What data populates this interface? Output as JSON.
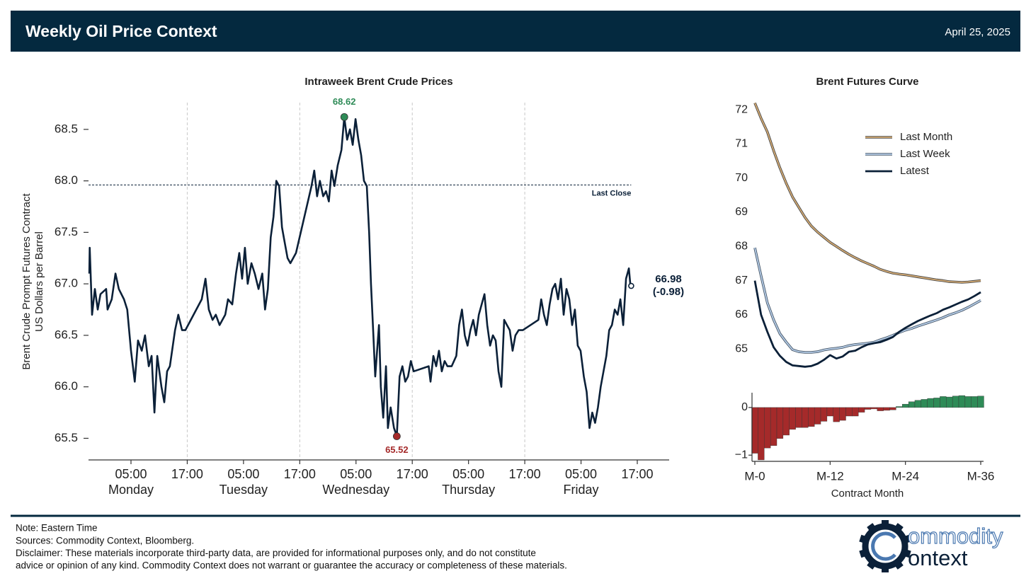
{
  "header": {
    "title": "Weekly Oil Price Context",
    "date": "April 25, 2025"
  },
  "chart_data": [
    {
      "type": "line",
      "title": "Intraweek Brent Crude Prices",
      "ylabel": [
        "Brent Crude Prompt Futures Contract",
        "US Dollars per Barrel"
      ],
      "color": "#0b2038",
      "x": [
        -3.9,
        -3.8,
        -3.3,
        -2.7,
        -2.1,
        -1.5,
        -0.3,
        0.0,
        0.9,
        1.7,
        2.4,
        3.5,
        4.2,
        5.0,
        5.8,
        6.5,
        7.3,
        8.0,
        8.8,
        9.4,
        10.0,
        10.6,
        11.5,
        12.1,
        12.7,
        13.3,
        14.4,
        15.1,
        15.9,
        16.6,
        20.1,
        20.9,
        21.6,
        22.4,
        23.1,
        23.9,
        25.1,
        25.7,
        26.6,
        27.4,
        28.1,
        28.7,
        29.3,
        29.9,
        30.7,
        31.4,
        32.2,
        33.0,
        33.6,
        34.2,
        34.8,
        35.4,
        36.0,
        36.6,
        37.2,
        37.8,
        38.4,
        39.0,
        40.2,
        43.5,
        44.1,
        44.7,
        45.3,
        46.0,
        46.6,
        47.2,
        47.8,
        48.4,
        49.1,
        49.9,
        50.5,
        51.1,
        51.7,
        52.3,
        52.9,
        53.5,
        54.1,
        54.7,
        55.3,
        55.8,
        56.2,
        56.7,
        57.1,
        57.9,
        58.3,
        58.8,
        59.4,
        59.8,
        60.4,
        61.1,
        61.7,
        62.3,
        62.9,
        63.5,
        64.1,
        64.7,
        65.3,
        68.5,
        68.9,
        69.5,
        70.1,
        70.7,
        71.3,
        71.9,
        72.5,
        73.4,
        74.4,
        75.0,
        75.6,
        76.2,
        76.8,
        77.4,
        78.0,
        78.6,
        79.2,
        79.8,
        80.4,
        81.0,
        81.6,
        82.2,
        82.8,
        83.4,
        84.0,
        84.6,
        85.2,
        85.8,
        86.4,
        87.0,
        87.7,
        88.6,
        91.9,
        92.5,
        93.1,
        93.7,
        94.3,
        94.9,
        95.5,
        96.1,
        96.7,
        97.3,
        97.9,
        98.5,
        99.1,
        99.7,
        100.3,
        100.9,
        101.6,
        102.2,
        102.8,
        103.4,
        104.0,
        104.6,
        105.2,
        105.8,
        106.4,
        107.0,
        107.6,
        108.2,
        108.8,
        109.4,
        110.0,
        110.6,
        111.2,
        111.5,
        111.7
      ],
      "values": [
        67.1,
        67.35,
        66.7,
        66.95,
        66.75,
        66.9,
        66.95,
        66.75,
        66.85,
        67.1,
        66.95,
        66.85,
        66.75,
        66.35,
        66.05,
        66.45,
        66.35,
        66.5,
        66.2,
        66.3,
        65.75,
        66.3,
        66.0,
        65.85,
        66.15,
        66.2,
        66.55,
        66.7,
        66.55,
        66.55,
        66.85,
        67.05,
        66.75,
        66.65,
        66.7,
        66.6,
        66.7,
        66.85,
        66.8,
        67.1,
        67.3,
        67.05,
        67.35,
        67.0,
        67.2,
        67.1,
        66.95,
        67.1,
        66.75,
        66.95,
        67.45,
        67.65,
        68.0,
        67.95,
        67.55,
        67.4,
        67.25,
        67.2,
        67.3,
        67.95,
        68.1,
        67.85,
        68.0,
        67.85,
        67.9,
        67.8,
        68.1,
        67.95,
        68.15,
        68.3,
        68.62,
        68.4,
        68.5,
        68.35,
        68.6,
        68.4,
        68.25,
        68.0,
        67.95,
        67.5,
        67.0,
        66.5,
        66.1,
        66.6,
        66.0,
        65.7,
        66.2,
        65.6,
        65.8,
        65.6,
        65.52,
        66.1,
        66.2,
        66.05,
        66.1,
        66.25,
        66.15,
        66.2,
        66.05,
        66.3,
        66.2,
        66.35,
        66.15,
        66.25,
        66.2,
        66.2,
        66.3,
        66.6,
        66.75,
        66.5,
        66.4,
        66.55,
        66.65,
        66.5,
        66.7,
        66.8,
        66.9,
        66.6,
        66.4,
        66.5,
        66.45,
        66.15,
        66.0,
        66.65,
        66.6,
        66.55,
        66.35,
        66.5,
        66.55,
        66.55,
        66.65,
        66.85,
        66.7,
        66.6,
        66.8,
        66.95,
        67.0,
        66.85,
        67.05,
        66.7,
        66.95,
        66.85,
        66.6,
        66.75,
        66.4,
        66.35,
        66.1,
        65.95,
        65.6,
        65.75,
        65.65,
        65.8,
        66.0,
        66.15,
        66.3,
        66.55,
        66.6,
        66.75,
        66.7,
        66.85,
        66.6,
        67.05,
        67.15,
        67.0,
        66.98
      ],
      "xlim": [
        -4.06,
        119.8
      ],
      "xticks": [
        {
          "value": 5,
          "label": "05:00\nMonday"
        },
        {
          "value": 17,
          "label": "17:00"
        },
        {
          "value": 29,
          "label": "05:00\nTuesday"
        },
        {
          "value": 41,
          "label": "17:00"
        },
        {
          "value": 53,
          "label": "05:00\nWednesday"
        },
        {
          "value": 65,
          "label": "17:00"
        },
        {
          "value": 77,
          "label": "05:00\nThursday"
        },
        {
          "value": 89,
          "label": "17:00"
        },
        {
          "value": 101,
          "label": "05:00\nFriday"
        },
        {
          "value": 113,
          "label": "17:00"
        }
      ],
      "xgrid": [
        17,
        41,
        65,
        89
      ],
      "ylim": [
        65.29,
        68.76
      ],
      "yticks": [
        65.5,
        {
          "value": 66,
          "label": "66.0"
        },
        66.5,
        {
          "value": 67,
          "label": "67.0"
        },
        67.5,
        {
          "value": 68,
          "label": "68.0"
        },
        68.5
      ],
      "reference_line": {
        "value": 67.96,
        "label": "Last Close"
      },
      "high": {
        "x": 50.5,
        "value": 68.62,
        "color": "#2e8b57"
      },
      "low": {
        "x": 61.7,
        "value": 65.52,
        "color": "#a52a2a"
      },
      "last": {
        "x": 111.7,
        "value": 66.98,
        "change": {
          "value": -0.98,
          "label": "(-0.98)"
        }
      }
    },
    {
      "type": "line",
      "title": "Brent Futures Curve",
      "x": [
        0,
        1,
        2,
        3,
        4,
        5,
        6,
        7,
        8,
        9,
        10,
        11,
        12,
        13,
        14,
        15,
        16,
        17,
        18,
        19,
        20,
        21,
        22,
        23,
        24,
        25,
        26,
        27,
        28,
        29,
        30,
        31,
        32,
        33,
        34,
        35,
        36
      ],
      "series": [
        {
          "name": "Last Month",
          "color": "#d4aa72",
          "edgecolor": "#4a4a4a",
          "values": [
            72.2,
            71.75,
            71.35,
            70.8,
            70.3,
            69.85,
            69.45,
            69.15,
            68.85,
            68.6,
            68.42,
            68.27,
            68.12,
            68.0,
            67.88,
            67.77,
            67.67,
            67.58,
            67.5,
            67.42,
            67.33,
            67.27,
            67.22,
            67.19,
            67.17,
            67.14,
            67.11,
            67.08,
            67.05,
            67.02,
            67.0,
            66.97,
            66.96,
            66.95,
            66.96,
            66.98,
            67.0
          ]
        },
        {
          "name": "Last Week",
          "color": "#b4cbe6",
          "edgecolor": "#4a5a6a",
          "values": [
            67.96,
            67.14,
            66.35,
            65.85,
            65.45,
            65.2,
            64.98,
            64.92,
            64.9,
            64.9,
            64.92,
            64.97,
            65.0,
            65.02,
            65.05,
            65.1,
            65.13,
            65.15,
            65.17,
            65.2,
            65.27,
            65.33,
            65.4,
            65.48,
            65.55,
            65.6,
            65.67,
            65.73,
            65.79,
            65.85,
            65.92,
            66.0,
            66.06,
            66.13,
            66.22,
            66.32,
            66.42
          ]
        },
        {
          "name": "Latest",
          "color": "#0b2038",
          "values": [
            67.0,
            66.0,
            65.5,
            65.05,
            64.8,
            64.62,
            64.52,
            64.5,
            64.48,
            64.5,
            64.57,
            64.68,
            64.82,
            64.72,
            64.78,
            64.92,
            64.95,
            65.05,
            65.13,
            65.17,
            65.2,
            65.27,
            65.35,
            65.5,
            65.62,
            65.72,
            65.82,
            65.9,
            65.98,
            66.05,
            66.15,
            66.22,
            66.3,
            66.38,
            66.45,
            66.55,
            66.66
          ]
        }
      ],
      "xlim": [
        -0.45,
        36.45
      ],
      "ylim": [
        64.3,
        72.21
      ],
      "yticks": [
        65,
        66,
        67,
        68,
        69,
        70,
        71,
        72
      ],
      "legend": "upper right"
    },
    {
      "type": "bar",
      "x": [
        0,
        1,
        2,
        3,
        4,
        5,
        6,
        7,
        8,
        9,
        10,
        11,
        12,
        13,
        14,
        15,
        16,
        17,
        18,
        19,
        20,
        21,
        22,
        23,
        24,
        25,
        26,
        27,
        28,
        29,
        30,
        31,
        32,
        33,
        34,
        35,
        36
      ],
      "values": [
        -0.96,
        -1.1,
        -0.85,
        -0.8,
        -0.65,
        -0.58,
        -0.46,
        -0.42,
        -0.42,
        -0.4,
        -0.35,
        -0.29,
        -0.18,
        -0.3,
        -0.27,
        -0.18,
        -0.18,
        -0.1,
        -0.04,
        -0.03,
        -0.07,
        -0.06,
        -0.05,
        0.02,
        0.07,
        0.12,
        0.15,
        0.17,
        0.19,
        0.2,
        0.23,
        0.22,
        0.24,
        0.25,
        0.23,
        0.23,
        0.24
      ],
      "positive_color": "#2e8b57",
      "negative_color": "#a52a2a",
      "xlim": [
        -0.45,
        36.45
      ],
      "ylim": [
        -1.13,
        0.31
      ],
      "yticks": [
        {
          "value": -1,
          "label": "−1"
        },
        0
      ],
      "xticks": [
        {
          "value": 0,
          "label": "M-0"
        },
        {
          "value": 12,
          "label": "M-12"
        },
        {
          "value": 24,
          "label": "M-24"
        },
        {
          "value": 36,
          "label": "M-36"
        }
      ],
      "xlabel": "Contract Month"
    }
  ],
  "footer": {
    "notes": [
      "Note: Eastern Time",
      "Sources: Commodity Context, Bloomberg.",
      "Disclaimer: These materials incorporate third-party data, are provided for informational purposes only, and do not constitute",
      "advice or opinion of any kind. Commodity Context does not warrant or guarantee the accuracy or completeness of these materials."
    ]
  },
  "logo": {
    "line1": "ommodity",
    "line2": "ontext"
  }
}
